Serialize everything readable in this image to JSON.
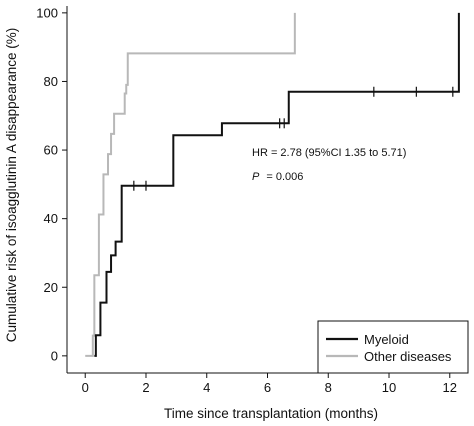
{
  "chart_data": {
    "type": "line",
    "title": "",
    "xlabel": "Time since transplantation (months)",
    "ylabel": "Cumulative risk of isoagglutinin A disappearance (%)",
    "xlim": [
      -0.6,
      12.6
    ],
    "ylim": [
      -5,
      102
    ],
    "xticks": [
      0,
      2,
      4,
      6,
      8,
      10,
      12
    ],
    "yticks": [
      0,
      20,
      40,
      60,
      80,
      100
    ],
    "grid": false,
    "legend_position": "bottom-right",
    "annotations": [
      {
        "text": "HR = 2.78 (95%CI 1.35 to 5.71)",
        "x": 6.25,
        "y": 59.2
      },
      {
        "text": "= 0.006",
        "italic_prefix": "P",
        "x": 6.25,
        "y": 52.5
      }
    ],
    "series": [
      {
        "name": "Myeloid",
        "color": "#111111",
        "steps": [
          [
            0.3,
            0
          ],
          [
            0.35,
            6
          ],
          [
            0.5,
            15.5
          ],
          [
            0.7,
            24.5
          ],
          [
            0.85,
            29.3
          ],
          [
            1.0,
            33.3
          ],
          [
            1.2,
            49.6
          ],
          [
            2.9,
            64.3
          ],
          [
            4.5,
            67.8
          ],
          [
            6.7,
            77.0
          ],
          [
            12.3,
            100
          ],
          [
            12.3,
            100
          ]
        ],
        "censor_x": [
          1.6,
          2.0,
          6.4,
          6.55,
          9.5,
          10.9,
          12.1
        ]
      },
      {
        "name": "Other diseases",
        "color": "#b8b8b8",
        "steps": [
          [
            0.0,
            0
          ],
          [
            0.25,
            5.9
          ],
          [
            0.3,
            23.5
          ],
          [
            0.45,
            41.2
          ],
          [
            0.6,
            52.9
          ],
          [
            0.75,
            58.8
          ],
          [
            0.85,
            64.7
          ],
          [
            0.95,
            70.6
          ],
          [
            1.3,
            76.5
          ],
          [
            1.35,
            79.0
          ],
          [
            1.4,
            88.2
          ],
          [
            6.9,
            100
          ],
          [
            6.9,
            100
          ]
        ],
        "censor_x": []
      }
    ]
  }
}
